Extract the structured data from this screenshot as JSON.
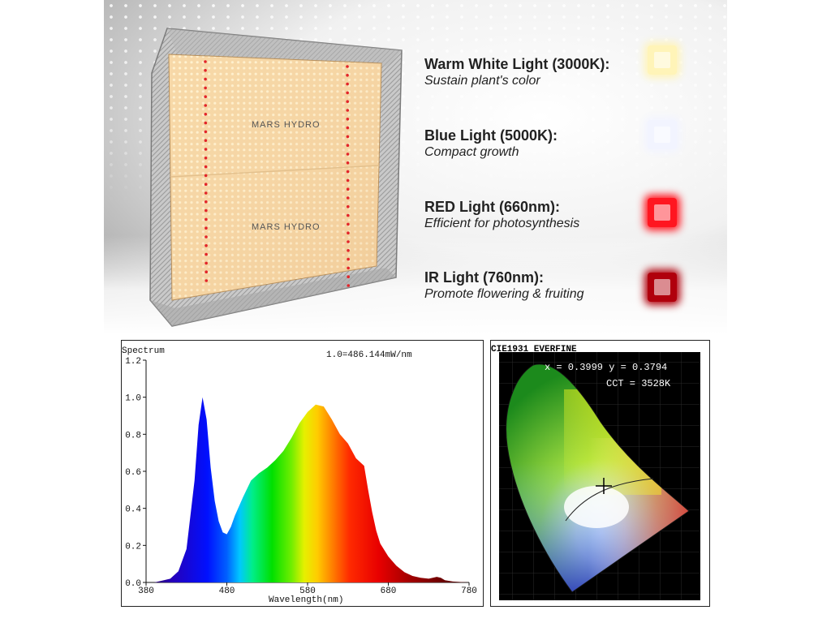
{
  "features": [
    {
      "title": "Warm White Light (3000K):",
      "subtitle": "Sustain plant's color",
      "color": "#fff4b8"
    },
    {
      "title": "Blue Light (5000K):",
      "subtitle": "Compact growth",
      "color": "#f2f4ff"
    },
    {
      "title": "RED Light (660nm):",
      "subtitle": "Efficient for photosynthesis",
      "color": "#ff1620"
    },
    {
      "title": "IR Light (760nm):",
      "subtitle": "Promote flowering & fruiting",
      "color": "#b0000c"
    }
  ],
  "lamp": {
    "brand": "MARS HYDRO"
  },
  "spectrum": {
    "title": "Spectrum",
    "scale_note": "1.0=486.144mW/nm",
    "xlabel": "Wavelength(nm)",
    "x_ticks": [
      "380",
      "480",
      "580",
      "680",
      "780"
    ],
    "y_ticks": [
      "0.0",
      "0.2",
      "0.4",
      "0.6",
      "0.8",
      "1.0",
      "1.2"
    ]
  },
  "chart_data": {
    "type": "area",
    "title": "Spectrum",
    "xlabel": "Wavelength(nm)",
    "ylabel": "",
    "xlim": [
      380,
      780
    ],
    "ylim": [
      0,
      1.2
    ],
    "x": [
      380,
      390,
      400,
      410,
      420,
      430,
      440,
      445,
      450,
      455,
      460,
      465,
      470,
      475,
      480,
      485,
      490,
      500,
      510,
      520,
      530,
      540,
      550,
      560,
      570,
      580,
      590,
      600,
      610,
      620,
      630,
      640,
      645,
      650,
      655,
      660,
      665,
      670,
      680,
      690,
      700,
      710,
      720,
      730,
      740,
      745,
      750,
      760,
      770,
      780
    ],
    "y": [
      0.0,
      0.0,
      0.01,
      0.02,
      0.06,
      0.18,
      0.55,
      0.85,
      1.0,
      0.88,
      0.62,
      0.44,
      0.33,
      0.27,
      0.26,
      0.3,
      0.36,
      0.46,
      0.55,
      0.59,
      0.62,
      0.66,
      0.71,
      0.78,
      0.86,
      0.92,
      0.96,
      0.95,
      0.88,
      0.8,
      0.75,
      0.67,
      0.65,
      0.63,
      0.5,
      0.38,
      0.28,
      0.21,
      0.14,
      0.09,
      0.055,
      0.035,
      0.025,
      0.02,
      0.03,
      0.025,
      0.012,
      0.005,
      0.002,
      0.0
    ],
    "grid": false
  },
  "cie": {
    "title": "CIE1931 EVERFINE",
    "coords": "x = 0.3999 y = 0.3794",
    "cct": "CCT = 3528K"
  }
}
